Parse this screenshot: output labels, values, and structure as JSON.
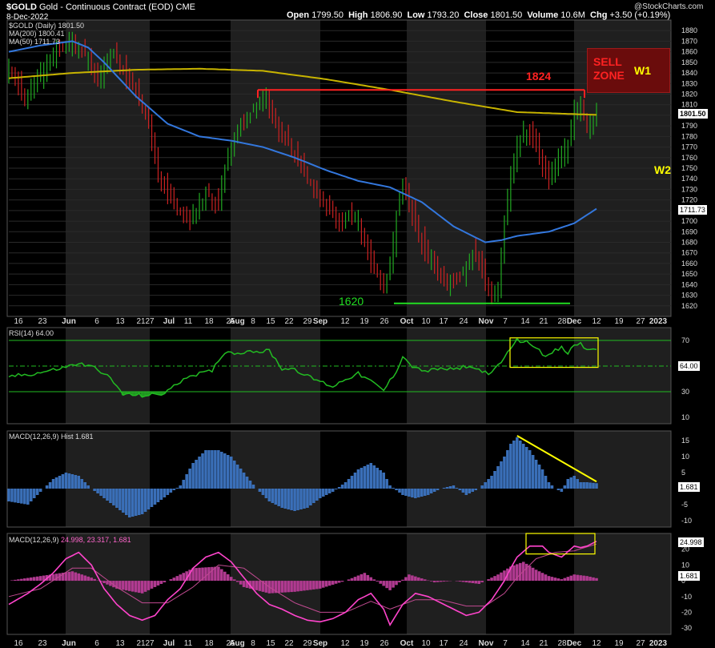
{
  "header": {
    "symbol": "$GOLD",
    "name": "Gold - Continuous Contract (EOD)",
    "exchange": "CME",
    "date": "8-Dec-2022",
    "open_label": "Open",
    "open": "1799.50",
    "high_label": "High",
    "high": "1806.90",
    "low_label": "Low",
    "low": "1793.20",
    "close_label": "Close",
    "close": "1801.50",
    "volume_label": "Volume",
    "volume": "10.6M",
    "chg_label": "Chg",
    "chg": "+3.50 (+0.19%)",
    "watermark": "@StockCharts.com"
  },
  "legend": {
    "price": "$GOLD (Daily) 1801.50",
    "ma200": "MA(200) 1800.41",
    "ma50": "MA(50) 1711.73",
    "rsi": "RSI(14) 64.00",
    "hist": "MACD(12,26,9) Hist 1.681",
    "macd_name": "MACD(12,26,9)",
    "macd_vals": "24.998, 23.317, 1.681"
  },
  "annotations": {
    "high_level": "1824",
    "low_level": "1620",
    "sell_zone_line1": "SELL",
    "sell_zone_line2": "ZONE",
    "w1": "W1",
    "w2": "W2"
  },
  "badges": {
    "close": "1801.50",
    "ma50": "1711.73",
    "rsi": "64.00",
    "hist": "1.681",
    "macd": "24.998",
    "macd_hist": "1.681"
  },
  "x_ticks": [
    "16",
    "23",
    "Jun",
    "6",
    "13",
    "21",
    "27",
    "Jul",
    "11",
    "18",
    "25",
    "Aug",
    "8",
    "15",
    "22",
    "29",
    "Sep",
    "12",
    "19",
    "26",
    "Oct",
    "10",
    "17",
    "24",
    "Nov",
    "7",
    "14",
    "21",
    "28",
    "Dec",
    "12",
    "19",
    "27",
    "2023"
  ],
  "colors": {
    "up": "#22aa22",
    "down": "#cc2222",
    "ma200": "#c8b400",
    "ma50": "#3377dd",
    "rsi": "#22bb22",
    "hist": "#3a6fb8",
    "macd": "#ff44cc",
    "macd_hist": "#b03a90",
    "annot_red": "#ff2222",
    "annot_green": "#22dd22",
    "annot_yellow": "#ffff00"
  },
  "chart_data": [
    {
      "type": "candlestick",
      "panel": "price",
      "ylim": [
        1610,
        1890
      ],
      "yticks": [
        1620,
        1630,
        1640,
        1650,
        1660,
        1670,
        1680,
        1690,
        1700,
        1710,
        1720,
        1730,
        1740,
        1750,
        1760,
        1770,
        1780,
        1790,
        1800,
        1810,
        1820,
        1830,
        1840,
        1850,
        1860,
        1870,
        1880
      ],
      "anchors": [
        [
          0,
          1845
        ],
        [
          5,
          1815
        ],
        [
          10,
          1840
        ],
        [
          15,
          1860
        ],
        [
          20,
          1870
        ],
        [
          25,
          1855
        ],
        [
          28,
          1830
        ],
        [
          30,
          1845
        ],
        [
          33,
          1860
        ],
        [
          37,
          1835
        ],
        [
          41,
          1818
        ],
        [
          44,
          1790
        ],
        [
          47,
          1745
        ],
        [
          50,
          1725
        ],
        [
          54,
          1708
        ],
        [
          57,
          1700
        ],
        [
          60,
          1715
        ],
        [
          63,
          1725
        ],
        [
          66,
          1715
        ],
        [
          69,
          1765
        ],
        [
          72,
          1785
        ],
        [
          75,
          1795
        ],
        [
          78,
          1810
        ],
        [
          81,
          1815
        ],
        [
          84,
          1790
        ],
        [
          87,
          1780
        ],
        [
          90,
          1765
        ],
        [
          93,
          1750
        ],
        [
          96,
          1728
        ],
        [
          99,
          1720
        ],
        [
          102,
          1705
        ],
        [
          105,
          1695
        ],
        [
          107,
          1705
        ],
        [
          110,
          1700
        ],
        [
          113,
          1668
        ],
        [
          116,
          1650
        ],
        [
          118,
          1635
        ],
        [
          120,
          1655
        ],
        [
          122,
          1705
        ],
        [
          124,
          1730
        ],
        [
          126,
          1715
        ],
        [
          128,
          1695
        ],
        [
          131,
          1672
        ],
        [
          134,
          1660
        ],
        [
          137,
          1645
        ],
        [
          140,
          1640
        ],
        [
          143,
          1652
        ],
        [
          146,
          1670
        ],
        [
          148,
          1665
        ],
        [
          150,
          1642
        ],
        [
          152,
          1630
        ],
        [
          154,
          1640
        ],
        [
          156,
          1700
        ],
        [
          158,
          1745
        ],
        [
          160,
          1770
        ],
        [
          162,
          1785
        ],
        [
          164,
          1782
        ],
        [
          166,
          1770
        ],
        [
          168,
          1752
        ],
        [
          170,
          1740
        ],
        [
          172,
          1755
        ],
        [
          174,
          1765
        ],
        [
          176,
          1770
        ],
        [
          178,
          1805
        ],
        [
          180,
          1810
        ],
        [
          182,
          1790
        ],
        [
          184,
          1795
        ],
        [
          185,
          1801.5
        ]
      ],
      "n_bars": 186,
      "levels": {
        "resistance": 1824,
        "support": 1620
      },
      "ma200_anchors": [
        [
          0,
          1835
        ],
        [
          20,
          1840
        ],
        [
          40,
          1843
        ],
        [
          60,
          1844
        ],
        [
          80,
          1842
        ],
        [
          100,
          1834
        ],
        [
          120,
          1824
        ],
        [
          140,
          1813
        ],
        [
          160,
          1803
        ],
        [
          185,
          1800.41
        ]
      ],
      "ma50_anchors": [
        [
          0,
          1860
        ],
        [
          10,
          1866
        ],
        [
          20,
          1870
        ],
        [
          25,
          1864
        ],
        [
          30,
          1850
        ],
        [
          40,
          1818
        ],
        [
          50,
          1792
        ],
        [
          60,
          1780
        ],
        [
          70,
          1776
        ],
        [
          80,
          1770
        ],
        [
          90,
          1760
        ],
        [
          100,
          1748
        ],
        [
          110,
          1738
        ],
        [
          120,
          1732
        ],
        [
          130,
          1718
        ],
        [
          140,
          1695
        ],
        [
          150,
          1680
        ],
        [
          155,
          1682
        ],
        [
          160,
          1686
        ],
        [
          170,
          1690
        ],
        [
          178,
          1698
        ],
        [
          185,
          1711.73
        ]
      ]
    },
    {
      "type": "line",
      "panel": "rsi",
      "ylim": [
        5,
        80
      ],
      "yticks": [
        10,
        30,
        50,
        70
      ],
      "levels": [
        70,
        50,
        30
      ],
      "anchors": [
        [
          0,
          42
        ],
        [
          8,
          44
        ],
        [
          16,
          48
        ],
        [
          22,
          52
        ],
        [
          28,
          48
        ],
        [
          32,
          40
        ],
        [
          36,
          28
        ],
        [
          42,
          27
        ],
        [
          48,
          28
        ],
        [
          52,
          34
        ],
        [
          56,
          42
        ],
        [
          60,
          44
        ],
        [
          64,
          46
        ],
        [
          66,
          55
        ],
        [
          68,
          60
        ],
        [
          70,
          62
        ],
        [
          72,
          59
        ],
        [
          76,
          63
        ],
        [
          78,
          61
        ],
        [
          82,
          62
        ],
        [
          86,
          48
        ],
        [
          90,
          48
        ],
        [
          94,
          42
        ],
        [
          98,
          38
        ],
        [
          102,
          34
        ],
        [
          106,
          40
        ],
        [
          110,
          44
        ],
        [
          114,
          38
        ],
        [
          118,
          31
        ],
        [
          122,
          46
        ],
        [
          124,
          58
        ],
        [
          126,
          52
        ],
        [
          128,
          48
        ],
        [
          132,
          46
        ],
        [
          136,
          48
        ],
        [
          140,
          47
        ],
        [
          144,
          50
        ],
        [
          148,
          47
        ],
        [
          152,
          44
        ],
        [
          156,
          56
        ],
        [
          158,
          65
        ],
        [
          160,
          70
        ],
        [
          162,
          69
        ],
        [
          164,
          68
        ],
        [
          166,
          65
        ],
        [
          168,
          60
        ],
        [
          170,
          58
        ],
        [
          172,
          62
        ],
        [
          174,
          64
        ],
        [
          176,
          60
        ],
        [
          178,
          66
        ],
        [
          180,
          68
        ],
        [
          182,
          62
        ],
        [
          185,
          64
        ]
      ]
    },
    {
      "type": "bar",
      "panel": "macd_hist",
      "ylim": [
        -12,
        18
      ],
      "yticks": [
        -10,
        -5,
        0,
        5,
        10,
        15
      ],
      "anchors": [
        [
          0,
          -4
        ],
        [
          6,
          -5
        ],
        [
          10,
          -1
        ],
        [
          14,
          3
        ],
        [
          18,
          5
        ],
        [
          22,
          4
        ],
        [
          26,
          0
        ],
        [
          30,
          -3
        ],
        [
          34,
          -6
        ],
        [
          38,
          -9
        ],
        [
          42,
          -8
        ],
        [
          46,
          -5
        ],
        [
          50,
          -2
        ],
        [
          54,
          1
        ],
        [
          58,
          8
        ],
        [
          62,
          12
        ],
        [
          66,
          12
        ],
        [
          70,
          10
        ],
        [
          74,
          5
        ],
        [
          78,
          0
        ],
        [
          82,
          -4
        ],
        [
          86,
          -6
        ],
        [
          90,
          -7
        ],
        [
          94,
          -6
        ],
        [
          98,
          -3
        ],
        [
          102,
          -1
        ],
        [
          106,
          2
        ],
        [
          110,
          6
        ],
        [
          114,
          8
        ],
        [
          118,
          5
        ],
        [
          120,
          1
        ],
        [
          124,
          -2
        ],
        [
          128,
          -3
        ],
        [
          132,
          -2
        ],
        [
          136,
          0
        ],
        [
          140,
          1
        ],
        [
          144,
          -2
        ],
        [
          148,
          0
        ],
        [
          152,
          4
        ],
        [
          156,
          10
        ],
        [
          158,
          14
        ],
        [
          160,
          16
        ],
        [
          164,
          12
        ],
        [
          168,
          6
        ],
        [
          170,
          2
        ],
        [
          172,
          0
        ],
        [
          174,
          -1
        ],
        [
          176,
          3
        ],
        [
          178,
          4
        ],
        [
          180,
          2
        ],
        [
          182,
          2
        ],
        [
          185,
          1.681
        ]
      ],
      "trend": [
        [
          160,
          16.5
        ],
        [
          185,
          2.2
        ]
      ]
    },
    {
      "type": "line",
      "panel": "macd",
      "ylim": [
        -34,
        30
      ],
      "yticks": [
        -30,
        -20,
        -10,
        0,
        10,
        20
      ],
      "macd_anchors": [
        [
          0,
          -15
        ],
        [
          6,
          -8
        ],
        [
          10,
          -2
        ],
        [
          14,
          5
        ],
        [
          18,
          14
        ],
        [
          22,
          18
        ],
        [
          26,
          10
        ],
        [
          30,
          -5
        ],
        [
          34,
          -15
        ],
        [
          38,
          -22
        ],
        [
          42,
          -25
        ],
        [
          46,
          -22
        ],
        [
          50,
          -12
        ],
        [
          54,
          -5
        ],
        [
          58,
          8
        ],
        [
          62,
          15
        ],
        [
          66,
          18
        ],
        [
          70,
          12
        ],
        [
          74,
          2
        ],
        [
          78,
          -8
        ],
        [
          82,
          -15
        ],
        [
          86,
          -18
        ],
        [
          90,
          -22
        ],
        [
          94,
          -25
        ],
        [
          98,
          -26
        ],
        [
          102,
          -24
        ],
        [
          106,
          -20
        ],
        [
          110,
          -12
        ],
        [
          114,
          -8
        ],
        [
          118,
          -18
        ],
        [
          120,
          -28
        ],
        [
          124,
          -15
        ],
        [
          128,
          -8
        ],
        [
          132,
          -10
        ],
        [
          136,
          -14
        ],
        [
          140,
          -18
        ],
        [
          144,
          -22
        ],
        [
          148,
          -20
        ],
        [
          152,
          -12
        ],
        [
          156,
          0
        ],
        [
          158,
          8
        ],
        [
          160,
          15
        ],
        [
          164,
          22
        ],
        [
          168,
          22
        ],
        [
          170,
          18
        ],
        [
          174,
          15
        ],
        [
          178,
          22
        ],
        [
          180,
          21
        ],
        [
          182,
          22
        ],
        [
          185,
          25
        ]
      ],
      "signal_anchors": [
        [
          0,
          -10
        ],
        [
          10,
          -5
        ],
        [
          20,
          8
        ],
        [
          26,
          8
        ],
        [
          34,
          -4
        ],
        [
          42,
          -14
        ],
        [
          50,
          -14
        ],
        [
          58,
          -4
        ],
        [
          66,
          10
        ],
        [
          74,
          8
        ],
        [
          82,
          -4
        ],
        [
          90,
          -14
        ],
        [
          98,
          -20
        ],
        [
          106,
          -20
        ],
        [
          114,
          -13
        ],
        [
          120,
          -18
        ],
        [
          128,
          -12
        ],
        [
          136,
          -12
        ],
        [
          144,
          -16
        ],
        [
          150,
          -16
        ],
        [
          156,
          -8
        ],
        [
          160,
          2
        ],
        [
          166,
          14
        ],
        [
          172,
          18
        ],
        [
          178,
          19
        ],
        [
          185,
          23.3
        ]
      ],
      "hist_anchors": [
        [
          0,
          0
        ],
        [
          10,
          3
        ],
        [
          20,
          6
        ],
        [
          26,
          2
        ],
        [
          34,
          -5
        ],
        [
          42,
          -8
        ],
        [
          50,
          0
        ],
        [
          58,
          8
        ],
        [
          66,
          9
        ],
        [
          74,
          -4
        ],
        [
          82,
          -8
        ],
        [
          90,
          -7
        ],
        [
          98,
          -5
        ],
        [
          106,
          0
        ],
        [
          112,
          5
        ],
        [
          120,
          -6
        ],
        [
          126,
          4
        ],
        [
          134,
          -1
        ],
        [
          140,
          0
        ],
        [
          148,
          -2
        ],
        [
          154,
          4
        ],
        [
          158,
          9
        ],
        [
          162,
          12
        ],
        [
          166,
          7
        ],
        [
          170,
          3
        ],
        [
          174,
          1
        ],
        [
          178,
          4
        ],
        [
          182,
          3
        ],
        [
          185,
          1.681
        ]
      ]
    }
  ]
}
